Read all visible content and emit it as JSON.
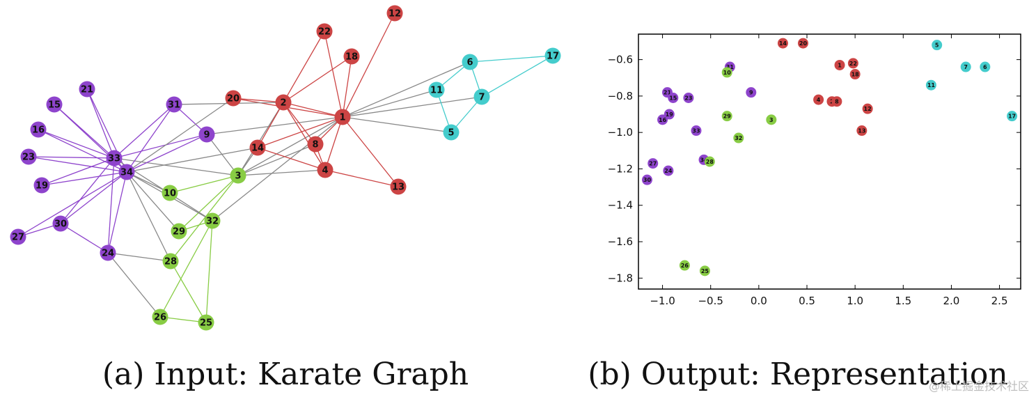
{
  "colors": {
    "purple": "#8e44cc",
    "red": "#cc4444",
    "green": "#88cc44",
    "cyan": "#44cccc",
    "gray": "#888888"
  },
  "graph": {
    "nodes": [
      {
        "id": "1",
        "group": "red"
      },
      {
        "id": "2",
        "group": "red"
      },
      {
        "id": "3",
        "group": "green"
      },
      {
        "id": "4",
        "group": "red"
      },
      {
        "id": "5",
        "group": "cyan"
      },
      {
        "id": "6",
        "group": "cyan"
      },
      {
        "id": "7",
        "group": "cyan"
      },
      {
        "id": "8",
        "group": "red"
      },
      {
        "id": "9",
        "group": "purple"
      },
      {
        "id": "10",
        "group": "green"
      },
      {
        "id": "11",
        "group": "cyan"
      },
      {
        "id": "12",
        "group": "red"
      },
      {
        "id": "13",
        "group": "red"
      },
      {
        "id": "14",
        "group": "red"
      },
      {
        "id": "15",
        "group": "purple"
      },
      {
        "id": "16",
        "group": "purple"
      },
      {
        "id": "17",
        "group": "cyan"
      },
      {
        "id": "18",
        "group": "red"
      },
      {
        "id": "19",
        "group": "purple"
      },
      {
        "id": "20",
        "group": "red"
      },
      {
        "id": "21",
        "group": "purple"
      },
      {
        "id": "22",
        "group": "red"
      },
      {
        "id": "23",
        "group": "purple"
      },
      {
        "id": "24",
        "group": "purple"
      },
      {
        "id": "25",
        "group": "green"
      },
      {
        "id": "26",
        "group": "green"
      },
      {
        "id": "27",
        "group": "purple"
      },
      {
        "id": "28",
        "group": "green"
      },
      {
        "id": "29",
        "group": "green"
      },
      {
        "id": "30",
        "group": "purple"
      },
      {
        "id": "31",
        "group": "purple"
      },
      {
        "id": "32",
        "group": "green"
      },
      {
        "id": "33",
        "group": "purple"
      },
      {
        "id": "34",
        "group": "purple"
      }
    ],
    "edges": [
      [
        "1",
        "2"
      ],
      [
        "1",
        "3"
      ],
      [
        "1",
        "4"
      ],
      [
        "1",
        "5"
      ],
      [
        "1",
        "6"
      ],
      [
        "1",
        "7"
      ],
      [
        "1",
        "8"
      ],
      [
        "1",
        "9"
      ],
      [
        "1",
        "11"
      ],
      [
        "1",
        "12"
      ],
      [
        "1",
        "13"
      ],
      [
        "1",
        "14"
      ],
      [
        "1",
        "18"
      ],
      [
        "1",
        "20"
      ],
      [
        "1",
        "22"
      ],
      [
        "1",
        "32"
      ],
      [
        "2",
        "3"
      ],
      [
        "2",
        "4"
      ],
      [
        "2",
        "8"
      ],
      [
        "2",
        "14"
      ],
      [
        "2",
        "18"
      ],
      [
        "2",
        "20"
      ],
      [
        "2",
        "22"
      ],
      [
        "2",
        "31"
      ],
      [
        "3",
        "4"
      ],
      [
        "3",
        "8"
      ],
      [
        "3",
        "9"
      ],
      [
        "3",
        "10"
      ],
      [
        "3",
        "14"
      ],
      [
        "3",
        "28"
      ],
      [
        "3",
        "29"
      ],
      [
        "3",
        "33"
      ],
      [
        "4",
        "8"
      ],
      [
        "4",
        "13"
      ],
      [
        "4",
        "14"
      ],
      [
        "5",
        "7"
      ],
      [
        "5",
        "11"
      ],
      [
        "6",
        "7"
      ],
      [
        "6",
        "11"
      ],
      [
        "6",
        "17"
      ],
      [
        "7",
        "17"
      ],
      [
        "9",
        "31"
      ],
      [
        "9",
        "33"
      ],
      [
        "9",
        "34"
      ],
      [
        "10",
        "34"
      ],
      [
        "14",
        "34"
      ],
      [
        "15",
        "33"
      ],
      [
        "15",
        "34"
      ],
      [
        "16",
        "33"
      ],
      [
        "16",
        "34"
      ],
      [
        "19",
        "33"
      ],
      [
        "19",
        "34"
      ],
      [
        "20",
        "34"
      ],
      [
        "21",
        "33"
      ],
      [
        "21",
        "34"
      ],
      [
        "23",
        "33"
      ],
      [
        "23",
        "34"
      ],
      [
        "24",
        "26"
      ],
      [
        "24",
        "28"
      ],
      [
        "24",
        "30"
      ],
      [
        "24",
        "33"
      ],
      [
        "24",
        "34"
      ],
      [
        "25",
        "26"
      ],
      [
        "25",
        "28"
      ],
      [
        "25",
        "32"
      ],
      [
        "26",
        "32"
      ],
      [
        "27",
        "30"
      ],
      [
        "27",
        "34"
      ],
      [
        "28",
        "34"
      ],
      [
        "29",
        "32"
      ],
      [
        "29",
        "34"
      ],
      [
        "30",
        "33"
      ],
      [
        "30",
        "34"
      ],
      [
        "31",
        "33"
      ],
      [
        "31",
        "34"
      ],
      [
        "32",
        "33"
      ],
      [
        "32",
        "34"
      ],
      [
        "33",
        "34"
      ]
    ]
  },
  "chart_data": {
    "type": "scatter",
    "title": "",
    "xlabel": "",
    "ylabel": "",
    "xlim": [
      -1.25,
      2.72
    ],
    "ylim": [
      -1.86,
      -0.46
    ],
    "xticks": [
      -1.0,
      -0.5,
      0.0,
      0.5,
      1.0,
      1.5,
      2.0,
      2.5
    ],
    "yticks": [
      -0.6,
      -0.8,
      -1.0,
      -1.2,
      -1.4,
      -1.6,
      -1.8
    ],
    "xtick_labels": [
      "−1.0",
      "−0.5",
      "0.0",
      "0.5",
      "1.0",
      "1.5",
      "2.0",
      "2.5"
    ],
    "ytick_labels": [
      "−0.6",
      "−0.8",
      "−1.0",
      "−1.2",
      "−1.4",
      "−1.6",
      "−1.8"
    ],
    "grid": false,
    "points": [
      {
        "label": "14",
        "x": 0.25,
        "y": -0.51,
        "group": "red"
      },
      {
        "label": "20",
        "x": 0.46,
        "y": -0.51,
        "group": "red"
      },
      {
        "label": "1",
        "x": 0.84,
        "y": -0.63,
        "group": "red"
      },
      {
        "label": "22",
        "x": 0.98,
        "y": -0.62,
        "group": "red"
      },
      {
        "label": "18",
        "x": 1.0,
        "y": -0.68,
        "group": "red"
      },
      {
        "label": "4",
        "x": 0.62,
        "y": -0.82,
        "group": "red"
      },
      {
        "label": "2",
        "x": 0.76,
        "y": -0.83,
        "group": "red"
      },
      {
        "label": "8",
        "x": 0.81,
        "y": -0.83,
        "group": "red"
      },
      {
        "label": "12",
        "x": 1.13,
        "y": -0.87,
        "group": "red"
      },
      {
        "label": "13",
        "x": 1.07,
        "y": -0.99,
        "group": "red"
      },
      {
        "label": "5",
        "x": 1.85,
        "y": -0.52,
        "group": "cyan"
      },
      {
        "label": "7",
        "x": 2.15,
        "y": -0.64,
        "group": "cyan"
      },
      {
        "label": "6",
        "x": 2.35,
        "y": -0.64,
        "group": "cyan"
      },
      {
        "label": "11",
        "x": 1.79,
        "y": -0.74,
        "group": "cyan"
      },
      {
        "label": "17",
        "x": 2.63,
        "y": -0.91,
        "group": "cyan"
      },
      {
        "label": "31",
        "x": -0.3,
        "y": -0.64,
        "group": "purple"
      },
      {
        "label": "9",
        "x": -0.08,
        "y": -0.78,
        "group": "purple"
      },
      {
        "label": "21",
        "x": -0.95,
        "y": -0.78,
        "group": "purple"
      },
      {
        "label": "15",
        "x": -0.89,
        "y": -0.81,
        "group": "purple"
      },
      {
        "label": "23",
        "x": -0.73,
        "y": -0.81,
        "group": "purple"
      },
      {
        "label": "19",
        "x": -0.93,
        "y": -0.9,
        "group": "purple"
      },
      {
        "label": "16",
        "x": -1.0,
        "y": -0.93,
        "group": "purple"
      },
      {
        "label": "33",
        "x": -0.65,
        "y": -0.99,
        "group": "purple"
      },
      {
        "label": "34",
        "x": -0.57,
        "y": -1.15,
        "group": "purple"
      },
      {
        "label": "27",
        "x": -1.1,
        "y": -1.17,
        "group": "purple"
      },
      {
        "label": "24",
        "x": -0.94,
        "y": -1.21,
        "group": "purple"
      },
      {
        "label": "30",
        "x": -1.16,
        "y": -1.26,
        "group": "purple"
      },
      {
        "label": "10",
        "x": -0.33,
        "y": -0.67,
        "group": "green"
      },
      {
        "label": "29",
        "x": -0.33,
        "y": -0.91,
        "group": "green"
      },
      {
        "label": "3",
        "x": 0.13,
        "y": -0.93,
        "group": "green"
      },
      {
        "label": "32",
        "x": -0.21,
        "y": -1.03,
        "group": "green"
      },
      {
        "label": "28",
        "x": -0.51,
        "y": -1.16,
        "group": "green"
      },
      {
        "label": "26",
        "x": -0.77,
        "y": -1.73,
        "group": "green"
      },
      {
        "label": "25",
        "x": -0.56,
        "y": -1.76,
        "group": "green"
      }
    ]
  },
  "captions": {
    "left": "(a) Input: Karate Graph",
    "right": "(b) Output: Representation"
  },
  "watermark": "@稀土掘金技术社区"
}
